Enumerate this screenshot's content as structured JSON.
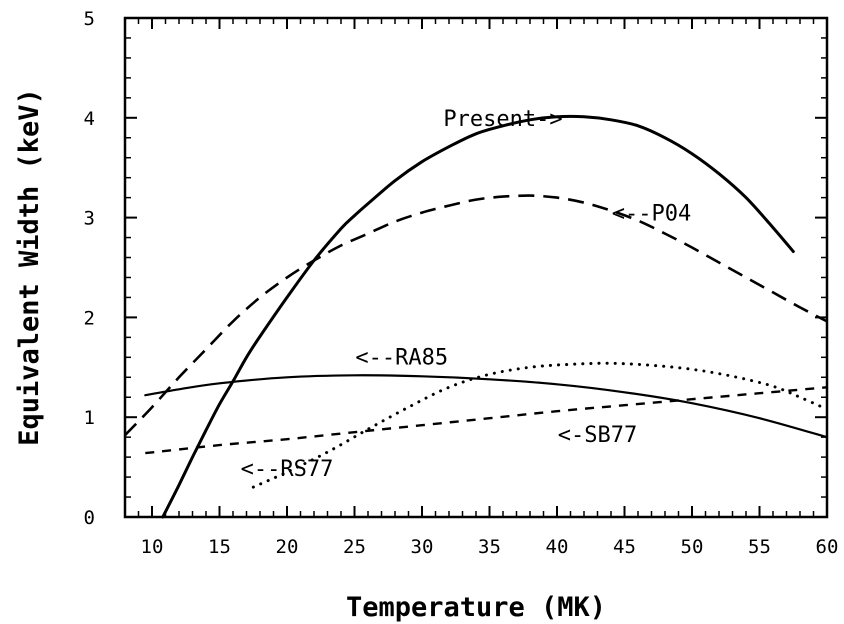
{
  "chart_data": {
    "type": "line",
    "xlabel": "Temperature (MK)",
    "ylabel": "Equivalent Width (keV)",
    "xlim": [
      8,
      60
    ],
    "ylim": [
      0,
      5
    ],
    "x_ticks": [
      10,
      15,
      20,
      25,
      30,
      35,
      40,
      45,
      50,
      55,
      60
    ],
    "x_tick_labels": [
      "10",
      "15",
      "20",
      "25",
      "30",
      "35",
      "40",
      "45",
      "50",
      "55",
      "60"
    ],
    "y_ticks": [
      0,
      1,
      2,
      3,
      4,
      5
    ],
    "y_tick_labels": [
      "0",
      "1",
      "2",
      "3",
      "4",
      "5"
    ],
    "grid": false,
    "series": [
      {
        "name": "Present->",
        "style": "solid",
        "x": [
          10.8,
          12,
          13,
          14,
          15,
          16,
          17,
          18,
          20,
          22,
          24,
          25,
          26,
          28,
          30,
          32,
          34,
          36,
          38,
          40,
          42,
          44,
          46,
          48,
          50,
          52,
          54,
          56,
          57.5
        ],
        "y": [
          0.0,
          0.32,
          0.6,
          0.87,
          1.13,
          1.36,
          1.6,
          1.81,
          2.2,
          2.57,
          2.89,
          3.02,
          3.14,
          3.37,
          3.56,
          3.71,
          3.84,
          3.92,
          3.98,
          4.01,
          4.01,
          3.98,
          3.92,
          3.8,
          3.64,
          3.44,
          3.2,
          2.9,
          2.66
        ]
      },
      {
        "name": "<--P04",
        "style": "dashed",
        "x": [
          8,
          10,
          12,
          14,
          16,
          18,
          20,
          22,
          24,
          26,
          28,
          30,
          32,
          34,
          36,
          38,
          40,
          42,
          44,
          46,
          48,
          50,
          52,
          54,
          56,
          58,
          60
        ],
        "y": [
          0.82,
          1.1,
          1.4,
          1.68,
          1.96,
          2.2,
          2.4,
          2.57,
          2.72,
          2.84,
          2.96,
          3.05,
          3.12,
          3.18,
          3.21,
          3.22,
          3.2,
          3.15,
          3.07,
          2.97,
          2.84,
          2.7,
          2.55,
          2.4,
          2.25,
          2.1,
          1.96
        ]
      },
      {
        "name": "<--RA85",
        "style": "solid-thin",
        "x": [
          9.5,
          12,
          15,
          20,
          25,
          30,
          35,
          40,
          45,
          50,
          55,
          60
        ],
        "y": [
          1.22,
          1.28,
          1.34,
          1.4,
          1.42,
          1.41,
          1.38,
          1.33,
          1.25,
          1.14,
          0.99,
          0.8
        ]
      },
      {
        "name": "<-SB77",
        "style": "short-dash",
        "x": [
          9.5,
          15,
          20,
          25,
          30,
          35,
          40,
          45,
          50,
          55,
          60
        ],
        "y": [
          0.64,
          0.72,
          0.78,
          0.85,
          0.92,
          0.99,
          1.06,
          1.12,
          1.18,
          1.24,
          1.3
        ]
      },
      {
        "name": "<--RS77",
        "style": "dotted",
        "x": [
          17.5,
          20,
          23,
          26,
          29,
          32,
          35,
          38,
          41,
          44,
          47,
          50,
          53,
          56,
          58,
          60
        ],
        "y": [
          0.3,
          0.45,
          0.65,
          0.88,
          1.1,
          1.3,
          1.43,
          1.5,
          1.53,
          1.54,
          1.52,
          1.48,
          1.41,
          1.31,
          1.2,
          1.08
        ]
      }
    ],
    "annotations": [
      {
        "text": "Present->",
        "x": 36,
        "y": 3.92
      },
      {
        "text": "<--P04",
        "x": 47,
        "y": 2.97
      },
      {
        "text": "<--RA85",
        "x": 28.5,
        "y": 1.53
      },
      {
        "text": "<-SB77",
        "x": 43,
        "y": 0.75
      },
      {
        "text": "<--RS77",
        "x": 20,
        "y": 0.41
      }
    ]
  }
}
